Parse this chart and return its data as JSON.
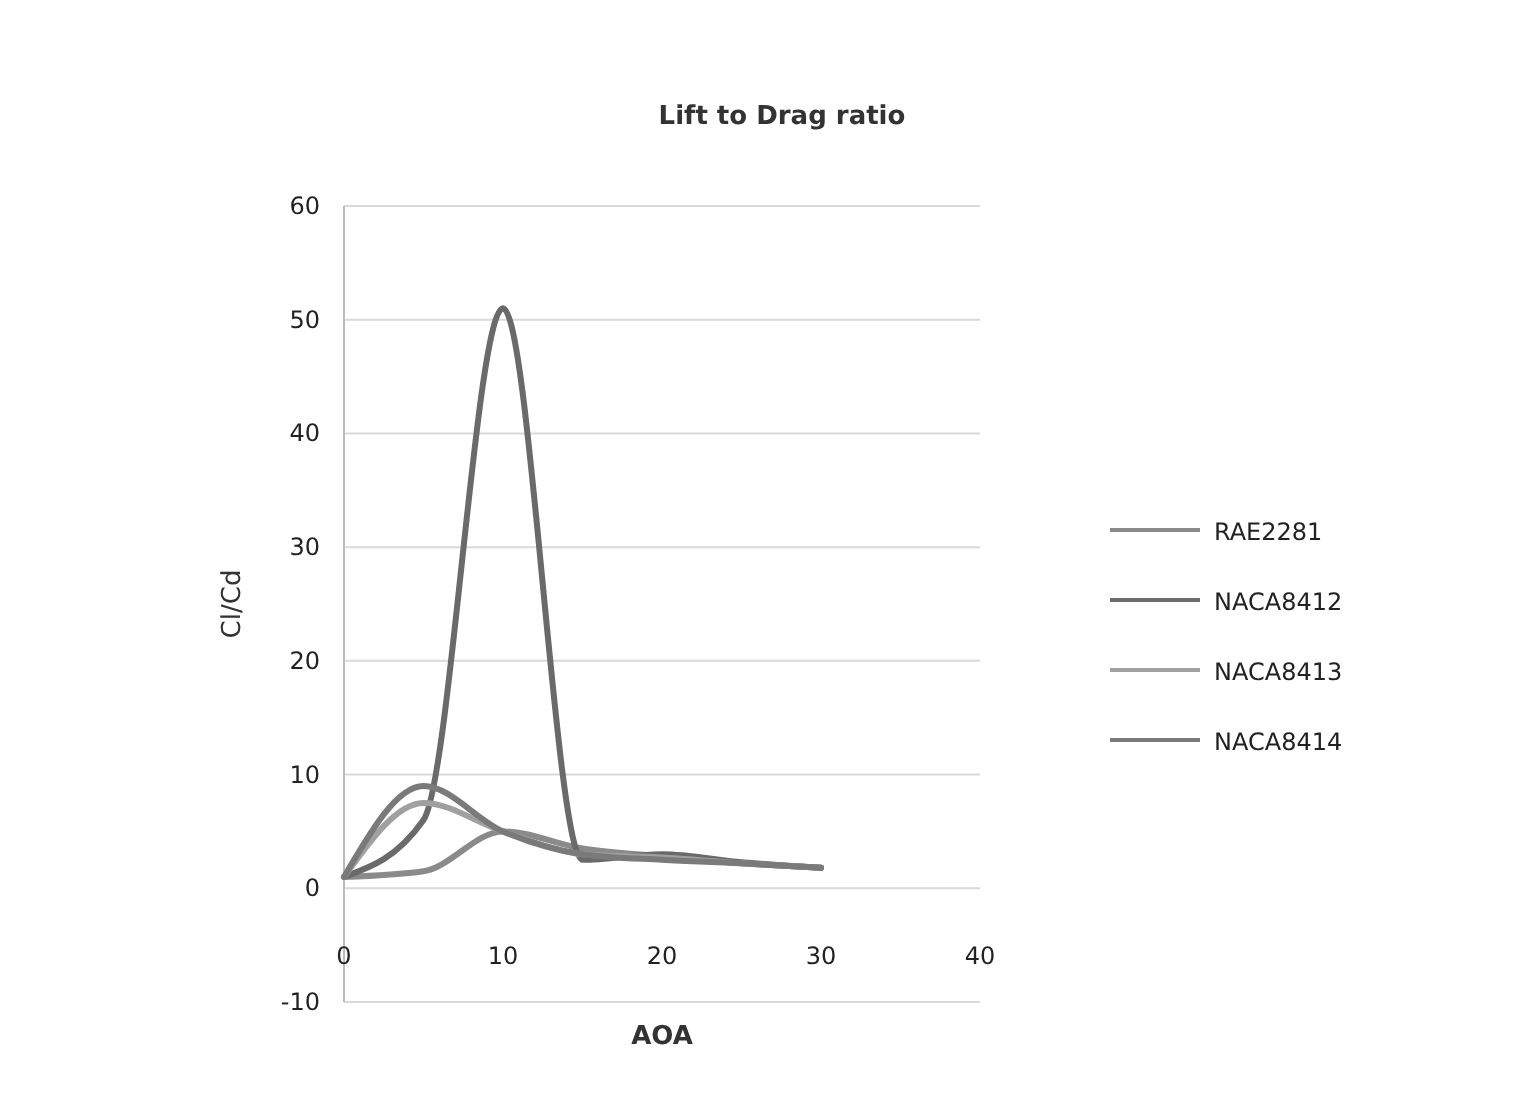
{
  "chart_data": {
    "type": "line",
    "title": "Lift to Drag ratio",
    "xlabel": "AOA",
    "ylabel": "Cl/Cd",
    "x": [
      0,
      5,
      10,
      15,
      20,
      25,
      30
    ],
    "xlim": [
      0,
      40
    ],
    "xticks": [
      0,
      10,
      20,
      30,
      40
    ],
    "ylim": [
      -10,
      60
    ],
    "yticks": [
      -10,
      0,
      10,
      20,
      30,
      40,
      50,
      60
    ],
    "grid": "y",
    "legend": "right",
    "marker": "none",
    "line_style": "solid",
    "series": [
      {
        "name": "RAE2281",
        "color": "#8a8a8a",
        "values": [
          1,
          1.5,
          5,
          3.5,
          2.8,
          2.2,
          1.8
        ]
      },
      {
        "name": "NACA8412",
        "color": "#6a6a6a",
        "values": [
          1,
          6,
          51,
          2.5,
          3,
          2.3,
          1.8
        ]
      },
      {
        "name": "NACA8413",
        "color": "#a0a0a0",
        "values": [
          1,
          7.5,
          5,
          3,
          2.7,
          2.2,
          1.8
        ]
      },
      {
        "name": "NACA8414",
        "color": "#7a7a7a",
        "values": [
          1,
          9,
          5,
          3,
          2.5,
          2.2,
          1.8
        ]
      }
    ]
  }
}
